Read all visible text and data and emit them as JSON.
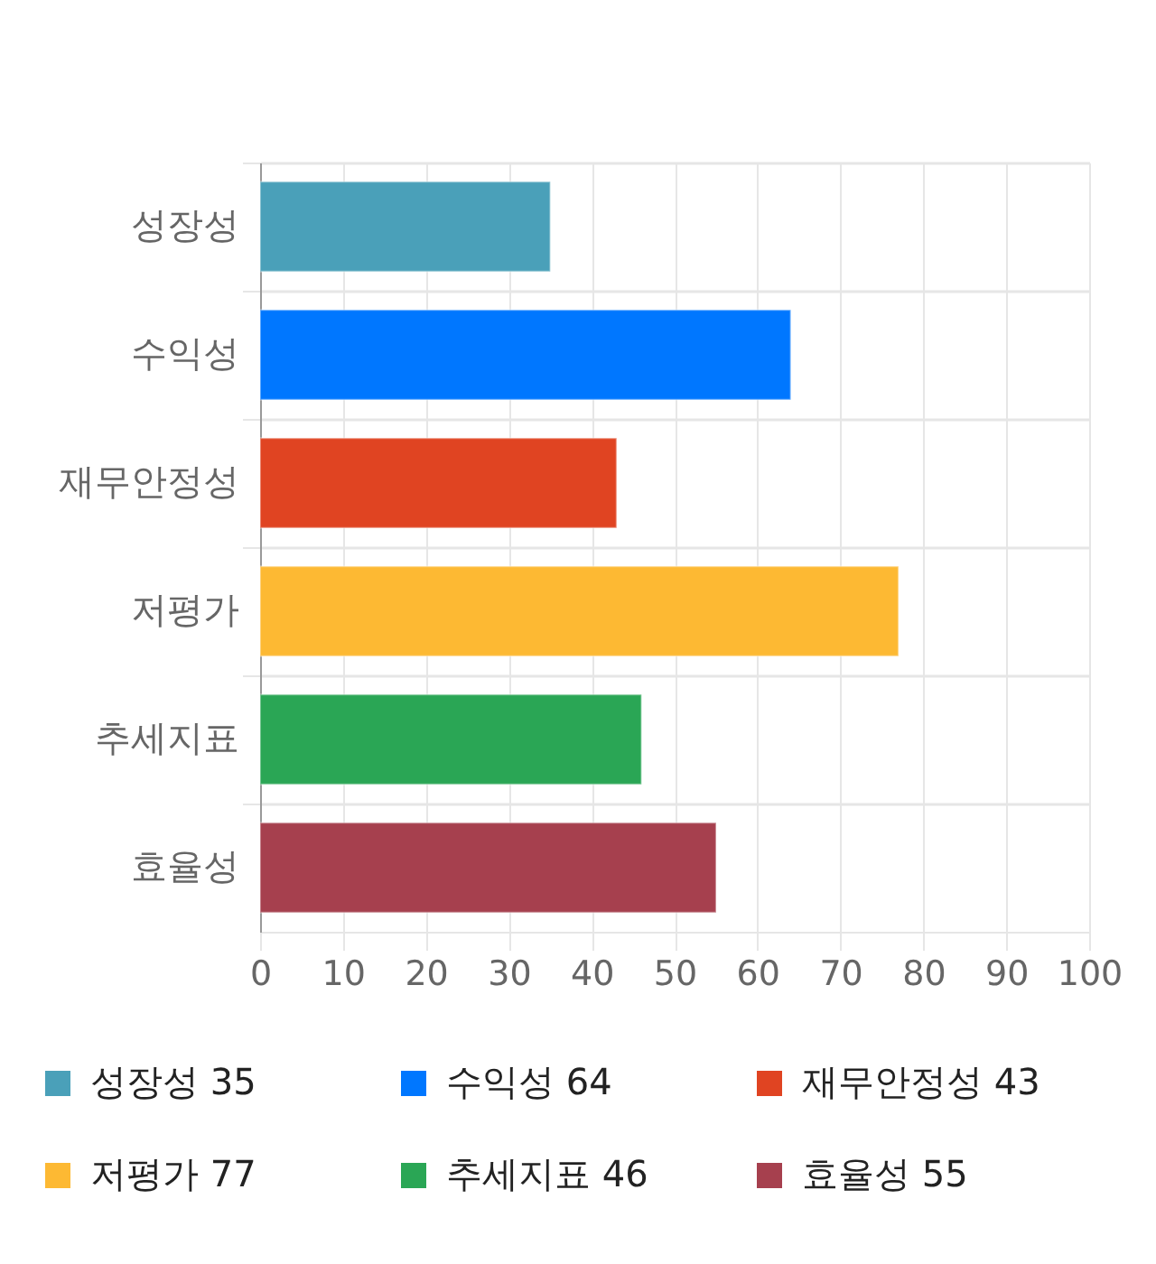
{
  "chart_data": {
    "type": "bar",
    "orientation": "horizontal",
    "categories": [
      "성장성",
      "수익성",
      "재무안정성",
      "저평가",
      "추세지표",
      "효율성"
    ],
    "series": [
      {
        "name": "성장성 35",
        "color": "#4aa0b9",
        "values": [
          35,
          null,
          null,
          null,
          null,
          null
        ]
      },
      {
        "name": "수익성 64",
        "color": "#0077ff",
        "values": [
          null,
          64,
          null,
          null,
          null,
          null
        ]
      },
      {
        "name": "재무안정성 43",
        "color": "#e04422",
        "values": [
          null,
          null,
          43,
          null,
          null,
          null
        ]
      },
      {
        "name": "저평가 77",
        "color": "#fdb933",
        "values": [
          null,
          null,
          null,
          77,
          null,
          null
        ]
      },
      {
        "name": "추세지표 46",
        "color": "#2aa655",
        "values": [
          null,
          null,
          null,
          null,
          46,
          null
        ]
      },
      {
        "name": "효율성 55",
        "color": "#a6404e",
        "values": [
          null,
          null,
          null,
          null,
          null,
          55
        ]
      }
    ],
    "xlim": [
      0,
      100
    ],
    "xticks": [
      0,
      10,
      20,
      30,
      40,
      50,
      60,
      70,
      80,
      90,
      100
    ],
    "grid": true,
    "legend": "bottom"
  }
}
